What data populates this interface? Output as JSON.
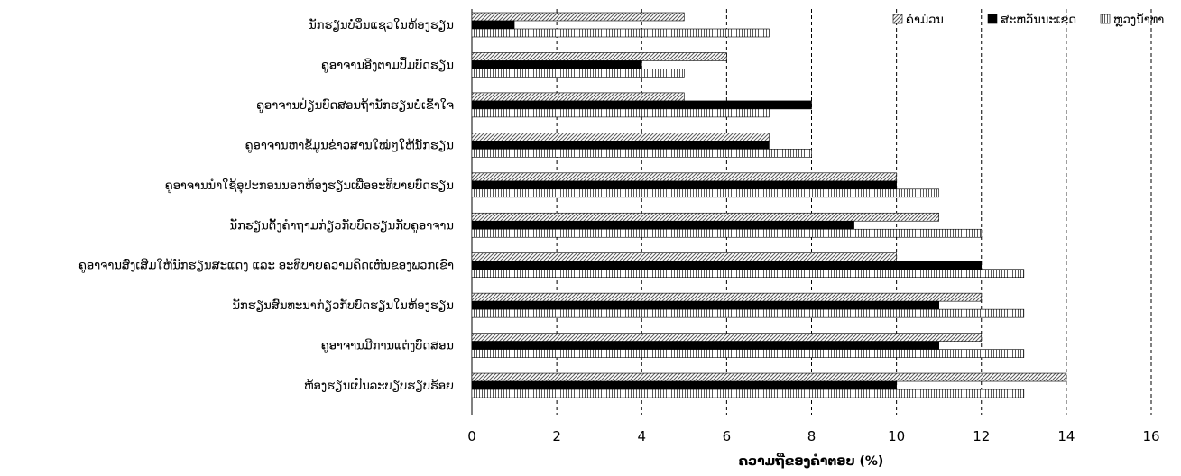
{
  "chart_data": {
    "type": "bar",
    "orientation": "horizontal",
    "categories": [
      "ນັກຮຽນບໍ່ວິ່ນແຊວໃນຫ້ອງຮຽນ",
      "ຄູອາຈານອີງຕາມປຶ້ມບົດຮຽນ",
      "ຄູອາຈານປ່ຽນບົດສອນຖ້ານັກຮຽນບໍ່ເຂົ້າໃຈ",
      "ຄູອາຈານຫາຂໍ້ມູນຂ່າວສານໃໝ່ໆໃຫ້ນັກຮຽນ",
      "ຄູອາຈານນຳໃຊ້ອຸປະກອນນອກຫ້ອງຮຽນເພື່ອອະທິບາຍບົດຮຽນ",
      "ນັກຮຽນຕັ້ງຄຳຖາມກ່ຽວກັບບົດຮຽນກັບຄູອາຈານ",
      "ຄູອາຈານສົ່ງເສີມໃຫ້ນັກຮຽນສະແດງ ແລະ ອະທິບາຍຄວາມຄິດເຫັນຂອງພວກເຂົາ",
      "ນັກຮຽນສົນທະນາກ່ຽວກັບບົດຮຽນໃນຫ້ອງຮຽນ",
      "ຄູອາຈານມີການແຕ່ງບົດສອນ",
      "ຫ້ອງຮຽນເປັນລະບຽບຮຽບຮ້ອຍ"
    ],
    "series": [
      {
        "name": "ຄຳມ່ວນ",
        "pattern": "diagonal",
        "values": [
          5,
          6,
          5,
          7,
          10,
          11,
          10,
          12,
          12,
          14
        ]
      },
      {
        "name": "ສະຫວັນນະເຂດ",
        "pattern": "solid",
        "values": [
          1,
          4,
          8,
          7,
          10,
          9,
          12,
          11,
          11,
          10
        ]
      },
      {
        "name": "ຫຼວງນ້ຳທາ",
        "pattern": "vertical",
        "values": [
          7,
          5,
          7,
          8,
          11,
          12,
          13,
          13,
          13,
          13
        ]
      }
    ],
    "xlabel": "ຄວາມຖີ່ຂອງຄຳຕອບ (%)",
    "ylabel": "",
    "xlim": [
      0,
      16
    ],
    "xticks": [
      "0",
      "2",
      "4",
      "6",
      "8",
      "10",
      "12",
      "14",
      "16"
    ],
    "grid": "vertical-dashed",
    "legend_position": "top-right",
    "colors": {
      "bar_fill": "#000000",
      "hatch": "#5a5a5a",
      "gridline": "#000000"
    }
  }
}
